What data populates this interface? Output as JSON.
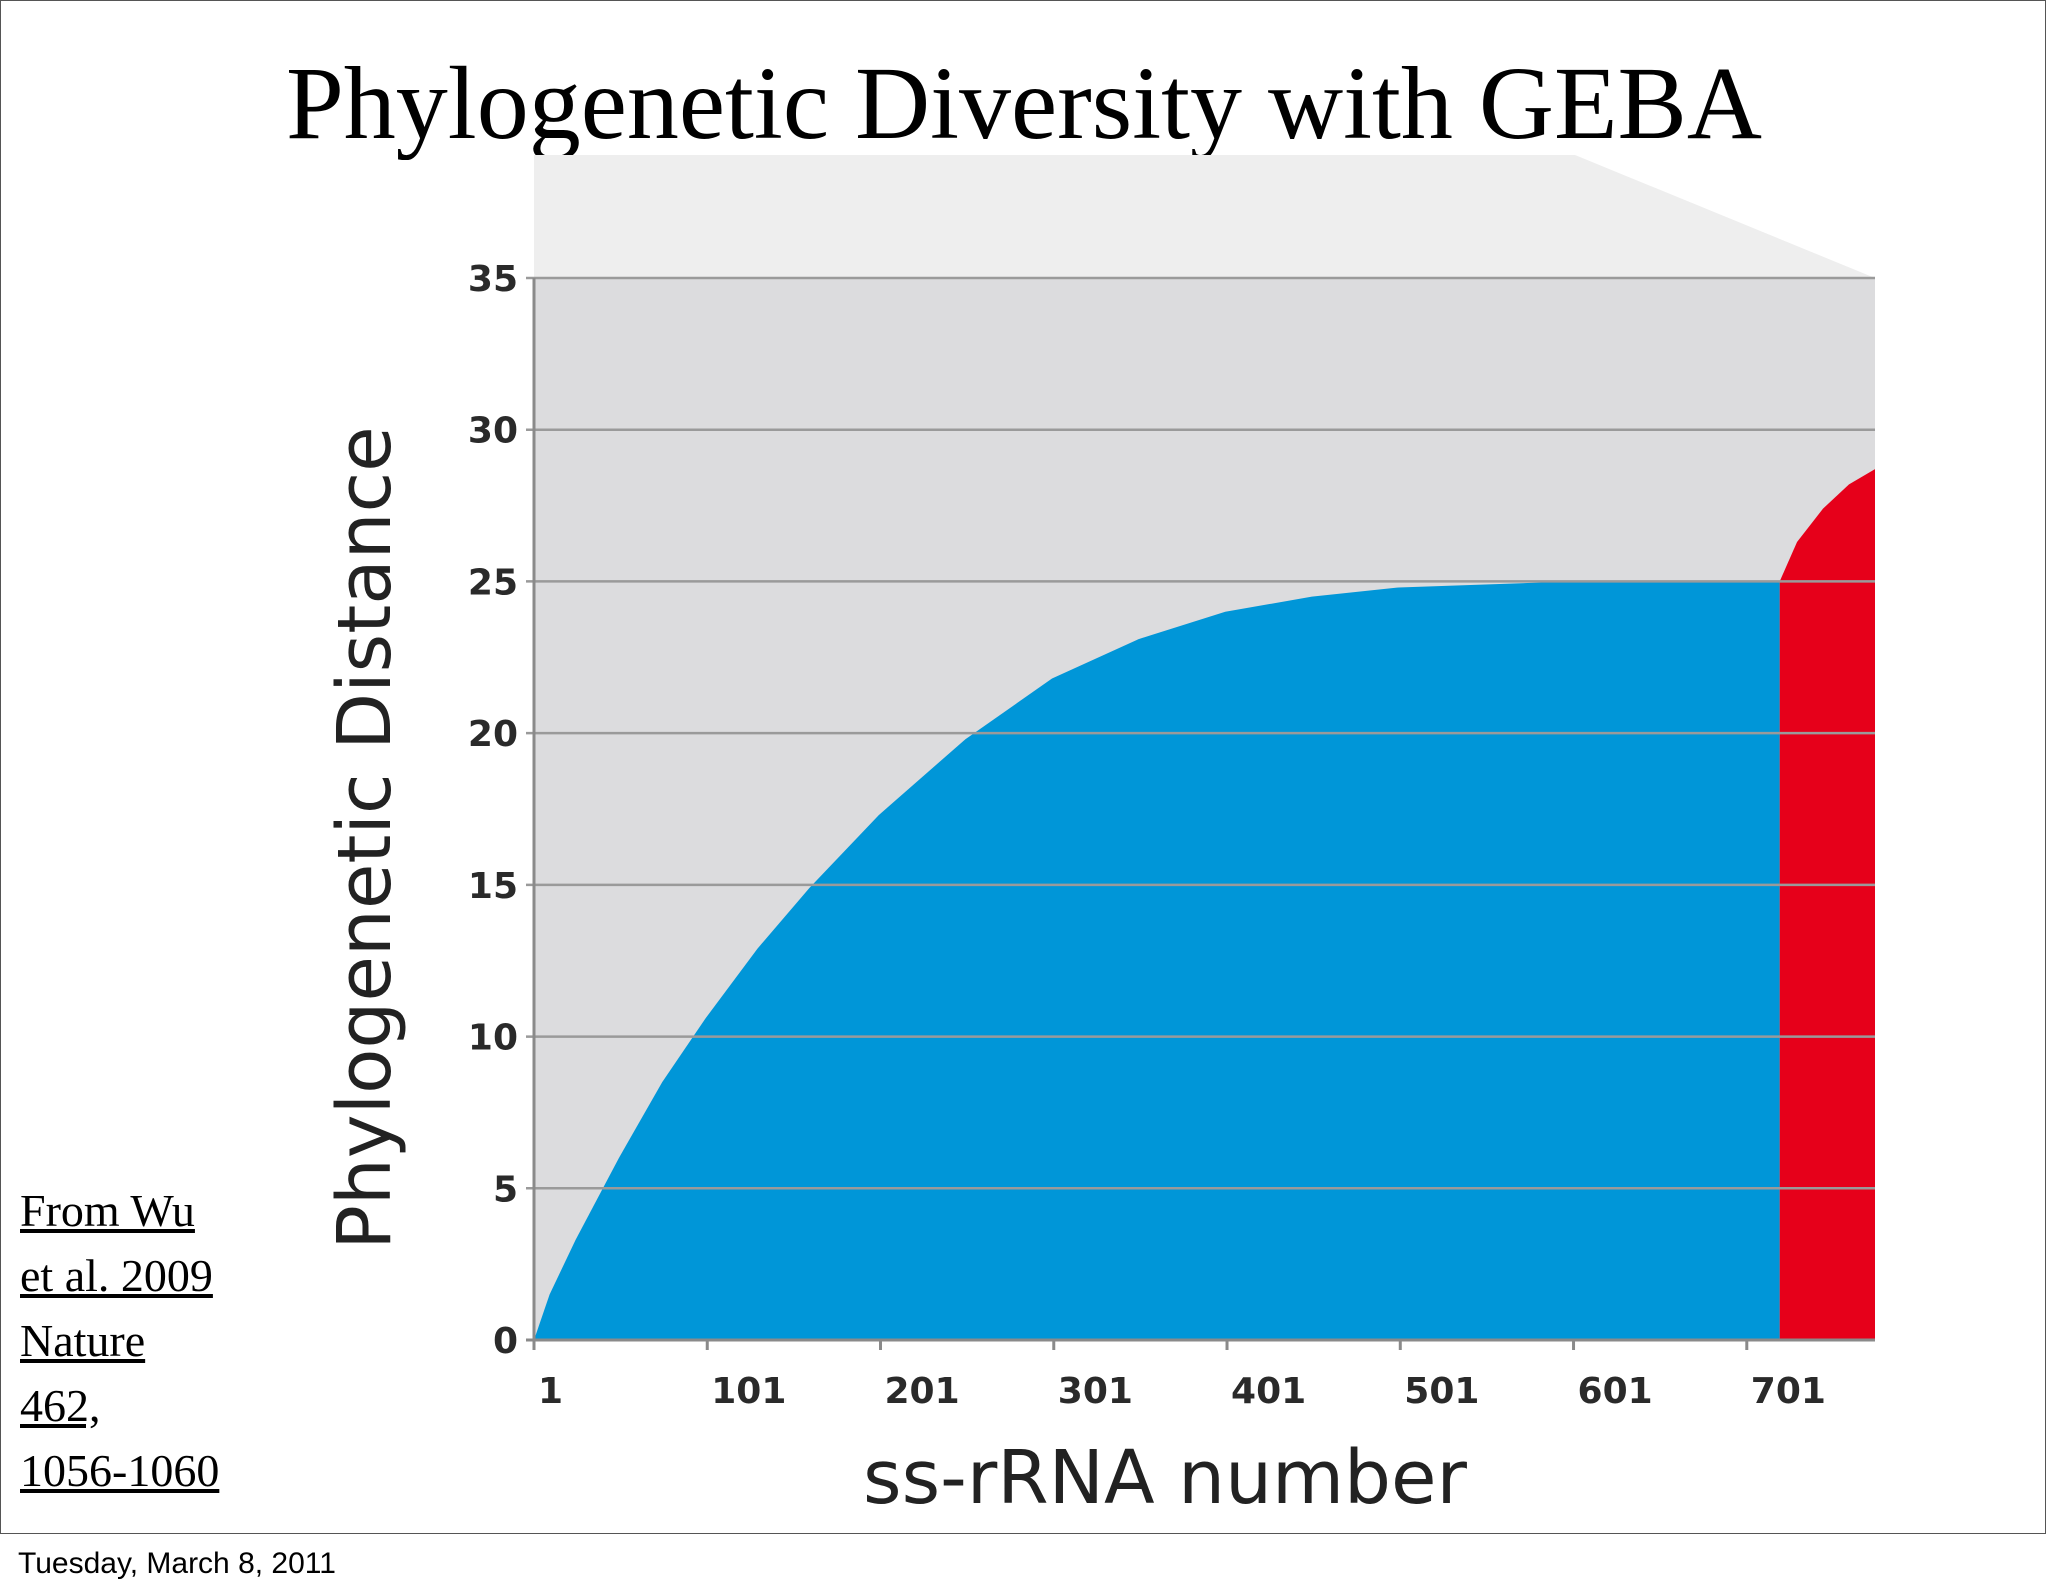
{
  "slide": {
    "title": "Phylogenetic Diversity with GEBA",
    "citation": [
      "From Wu",
      "et al. 2009",
      "Nature",
      "462,",
      "1056-1060"
    ],
    "footer_date": "Tuesday, March 8, 2011"
  },
  "colors": {
    "plot_background": "#dcdcde",
    "backdrop": "#eeeeee",
    "gridline": "#9a9a9a",
    "existing_area": "#0096d8",
    "geba_area": "#e6001a"
  },
  "chart_data": {
    "type": "area",
    "title": "",
    "xlabel": "ss-rRNA number",
    "ylabel": "Phylogenetic Distance",
    "xlim": [
      1,
      775
    ],
    "ylim": [
      0,
      35
    ],
    "x_ticks": [
      "1",
      "101",
      "201",
      "301",
      "401",
      "501",
      "601",
      "701"
    ],
    "y_ticks": [
      "0",
      "5",
      "10",
      "15",
      "20",
      "25",
      "30",
      "35"
    ],
    "grid": true,
    "legend": "none",
    "series": [
      {
        "color": "#0096d8",
        "x": [
          1,
          10,
          25,
          50,
          75,
          100,
          130,
          160,
          200,
          250,
          300,
          350,
          400,
          450,
          500,
          550,
          600,
          650,
          700,
          720
        ],
        "y": [
          0,
          1.5,
          3.3,
          6.0,
          8.5,
          10.6,
          12.9,
          14.9,
          17.3,
          19.8,
          21.8,
          23.1,
          24.0,
          24.5,
          24.8,
          24.9,
          25.0,
          25.0,
          25.0,
          25.0
        ]
      },
      {
        "color": "#e6001a",
        "x": [
          720,
          730,
          745,
          760,
          775
        ],
        "y": [
          25.0,
          26.3,
          27.4,
          28.2,
          28.7
        ]
      }
    ]
  }
}
